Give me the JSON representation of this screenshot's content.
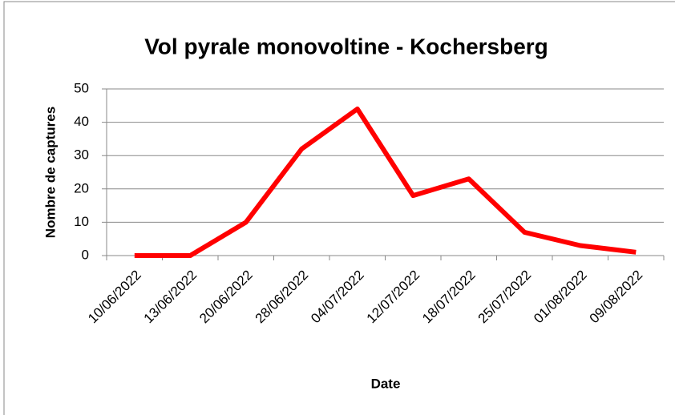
{
  "chart_data": {
    "type": "line",
    "title": "Vol pyrale monovoltine - Kochersberg",
    "x_label": "Date",
    "y_label": "Nombre de captures",
    "categories": [
      "10/06/2022",
      "13/06/2022",
      "20/06/2022",
      "28/06/2022",
      "04/07/2022",
      "12/07/2022",
      "18/07/2022",
      "25/07/2022",
      "01/08/2022",
      "09/08/2022"
    ],
    "values": [
      0,
      0,
      10,
      32,
      44,
      18,
      23,
      7,
      3,
      1
    ],
    "color": "#ff0000",
    "ylim": [
      0,
      50
    ],
    "yticks": [
      0,
      10,
      20,
      30,
      40,
      50
    ],
    "grid": true
  }
}
